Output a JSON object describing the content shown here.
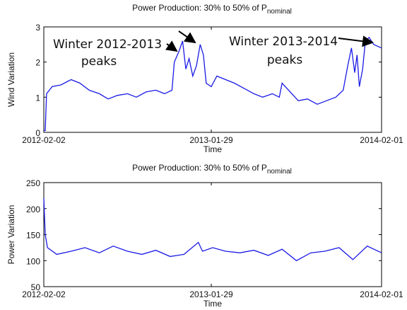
{
  "chart_data": [
    {
      "type": "line",
      "title": "Power Production: 30% to 50% of P",
      "title_subscript": "nominal",
      "xlabel": "Time",
      "ylabel": "Wind Variation",
      "xlim": [
        "2012-02-02",
        "2014-02-01"
      ],
      "xticks": [
        "2012-02-02",
        "2013-01-29",
        "2014-02-01"
      ],
      "ylim": [
        0,
        3
      ],
      "yticks": [
        0,
        1,
        2,
        3
      ],
      "annotations": [
        [
          "Winter 2012-2013",
          "peaks"
        ],
        [
          "Winter 2013-2014",
          "peaks"
        ]
      ],
      "series": [
        {
          "name": "Wind Variation",
          "color": "#1a1ae6",
          "x": [
            "2012-02-02",
            "2012-02-05",
            "2012-02-08",
            "2012-02-20",
            "2012-03-10",
            "2012-04-01",
            "2012-04-20",
            "2012-05-10",
            "2012-06-01",
            "2012-06-20",
            "2012-07-10",
            "2012-08-01",
            "2012-08-20",
            "2012-09-10",
            "2012-10-01",
            "2012-10-20",
            "2012-11-05",
            "2012-11-10",
            "2012-11-20",
            "2012-11-28",
            "2012-12-05",
            "2012-12-12",
            "2012-12-20",
            "2012-12-28",
            "2013-01-05",
            "2013-01-12",
            "2013-01-18",
            "2013-01-29",
            "2013-02-10",
            "2013-03-01",
            "2013-03-20",
            "2013-04-10",
            "2013-05-01",
            "2013-05-20",
            "2013-06-10",
            "2013-06-25",
            "2013-07-01",
            "2013-07-15",
            "2013-08-05",
            "2013-08-25",
            "2013-09-15",
            "2013-10-05",
            "2013-10-25",
            "2013-11-10",
            "2013-11-20",
            "2013-11-28",
            "2013-12-05",
            "2013-12-10",
            "2013-12-15",
            "2013-12-22",
            "2013-12-28",
            "2014-01-05",
            "2014-01-15",
            "2014-02-01"
          ],
          "values": [
            0.05,
            0.05,
            1.1,
            1.3,
            1.35,
            1.5,
            1.4,
            1.2,
            1.1,
            0.95,
            1.05,
            1.1,
            1.0,
            1.15,
            1.2,
            1.1,
            1.2,
            2.0,
            2.3,
            2.6,
            1.8,
            2.1,
            1.6,
            1.9,
            2.5,
            2.2,
            1.4,
            1.3,
            1.6,
            1.5,
            1.4,
            1.25,
            1.1,
            1.0,
            1.1,
            1.0,
            1.4,
            1.2,
            0.9,
            0.95,
            0.8,
            0.9,
            1.0,
            1.2,
            1.9,
            2.4,
            1.7,
            2.2,
            1.3,
            1.8,
            2.6,
            2.7,
            2.5,
            2.4
          ]
        }
      ]
    },
    {
      "type": "line",
      "title": "Power Production: 30% to 50% of P",
      "title_subscript": "nominal",
      "xlabel": "Time",
      "ylabel": "Power Variation",
      "xlim": [
        "2012-02-02",
        "2014-02-01"
      ],
      "xticks": [
        "2012-02-02",
        "2013-01-29",
        "2014-02-01"
      ],
      "ylim": [
        50,
        250
      ],
      "yticks": [
        50,
        100,
        150,
        200,
        250
      ],
      "series": [
        {
          "name": "Power Variation",
          "color": "#1a1ae6",
          "x": [
            "2012-02-02",
            "2012-02-05",
            "2012-02-10",
            "2012-03-01",
            "2012-04-01",
            "2012-05-01",
            "2012-06-01",
            "2012-07-01",
            "2012-08-01",
            "2012-09-01",
            "2012-10-01",
            "2012-11-01",
            "2012-12-01",
            "2013-01-01",
            "2013-01-10",
            "2013-02-01",
            "2013-03-01",
            "2013-04-01",
            "2013-05-01",
            "2013-06-01",
            "2013-07-01",
            "2013-08-01",
            "2013-09-01",
            "2013-10-01",
            "2013-11-01",
            "2013-12-01",
            "2014-01-01",
            "2014-02-01"
          ],
          "values": [
            220,
            150,
            125,
            112,
            118,
            125,
            115,
            128,
            118,
            112,
            120,
            108,
            112,
            135,
            118,
            125,
            118,
            115,
            120,
            110,
            122,
            100,
            115,
            118,
            125,
            102,
            128,
            115
          ]
        }
      ]
    }
  ]
}
